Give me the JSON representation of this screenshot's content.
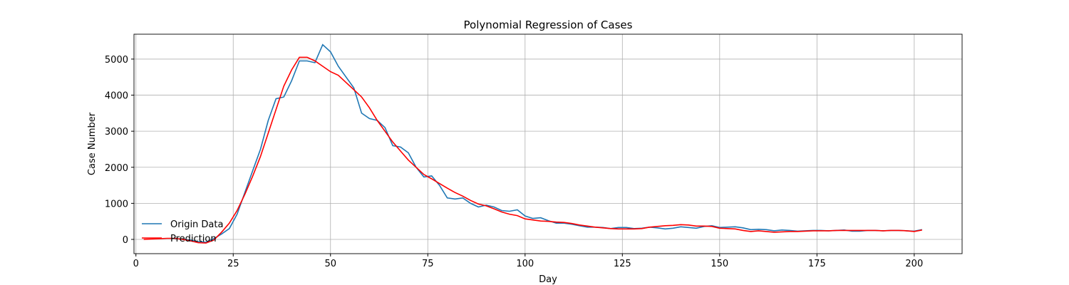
{
  "chart_data": {
    "type": "line",
    "title": "Polynomial Regression of Cases",
    "x_label": "Day",
    "y_label": "Case Number",
    "x": [
      2,
      4,
      6,
      8,
      10,
      12,
      14,
      16,
      18,
      20,
      22,
      24,
      26,
      28,
      30,
      32,
      34,
      36,
      38,
      40,
      42,
      44,
      46,
      48,
      50,
      52,
      54,
      56,
      58,
      60,
      62,
      64,
      66,
      68,
      70,
      72,
      74,
      76,
      78,
      80,
      82,
      84,
      86,
      88,
      90,
      92,
      94,
      96,
      98,
      100,
      102,
      104,
      106,
      108,
      110,
      112,
      114,
      116,
      118,
      120,
      122,
      124,
      126,
      128,
      130,
      132,
      134,
      136,
      138,
      140,
      142,
      144,
      146,
      148,
      150,
      152,
      154,
      156,
      158,
      160,
      162,
      164,
      166,
      168,
      170,
      172,
      174,
      176,
      178,
      180,
      182,
      184,
      186,
      188,
      190,
      192,
      194,
      196,
      198,
      200,
      202
    ],
    "series": [
      {
        "name": "Origin Data",
        "color": "#1f77b4",
        "values": [
          null,
          null,
          null,
          null,
          20,
          10,
          -20,
          -60,
          -80,
          20,
          150,
          300,
          700,
          1300,
          1900,
          2500,
          3300,
          3900,
          3950,
          4400,
          4950,
          4950,
          4900,
          5400,
          5200,
          4800,
          4500,
          4200,
          3500,
          3350,
          3300,
          3100,
          2600,
          2560,
          2400,
          2000,
          1730,
          1760,
          1500,
          1150,
          1120,
          1150,
          1000,
          900,
          950,
          900,
          800,
          780,
          820,
          650,
          580,
          600,
          520,
          450,
          450,
          420,
          380,
          340,
          340,
          330,
          300,
          330,
          330,
          300,
          310,
          340,
          320,
          290,
          310,
          350,
          330,
          310,
          360,
          380,
          330,
          340,
          350,
          320,
          270,
          280,
          270,
          240,
          260,
          250,
          230,
          240,
          250,
          250,
          240,
          250,
          260,
          230,
          230,
          250,
          250,
          240,
          250,
          250,
          240,
          230,
          270
        ]
      },
      {
        "name": "Prediction",
        "color": "#ff0000",
        "values": [
          0,
          10,
          20,
          30,
          30,
          0,
          -40,
          -90,
          -100,
          -20,
          200,
          450,
          800,
          1250,
          1750,
          2300,
          2950,
          3600,
          4250,
          4700,
          5050,
          5050,
          4950,
          4800,
          4650,
          4550,
          4350,
          4150,
          3950,
          3650,
          3300,
          3000,
          2700,
          2450,
          2200,
          2000,
          1800,
          1680,
          1550,
          1420,
          1300,
          1200,
          1080,
          980,
          930,
          850,
          760,
          700,
          660,
          570,
          540,
          510,
          500,
          480,
          470,
          440,
          400,
          370,
          340,
          320,
          300,
          290,
          290,
          290,
          300,
          340,
          360,
          380,
          390,
          410,
          400,
          370,
          370,
          360,
          310,
          300,
          290,
          250,
          220,
          240,
          220,
          200,
          210,
          220,
          220,
          230,
          240,
          240,
          240,
          250,
          250,
          250,
          250,
          250,
          250,
          240,
          250,
          250,
          240,
          220,
          260
        ]
      }
    ],
    "xlim": [
      -0.5,
      212.3
    ],
    "ylim": [
      -395,
      5690
    ],
    "xticks": [
      0,
      25,
      50,
      75,
      100,
      125,
      150,
      175,
      200
    ],
    "yticks": [
      0,
      1000,
      2000,
      3000,
      4000,
      5000
    ],
    "grid": true,
    "legend": "lower left"
  }
}
